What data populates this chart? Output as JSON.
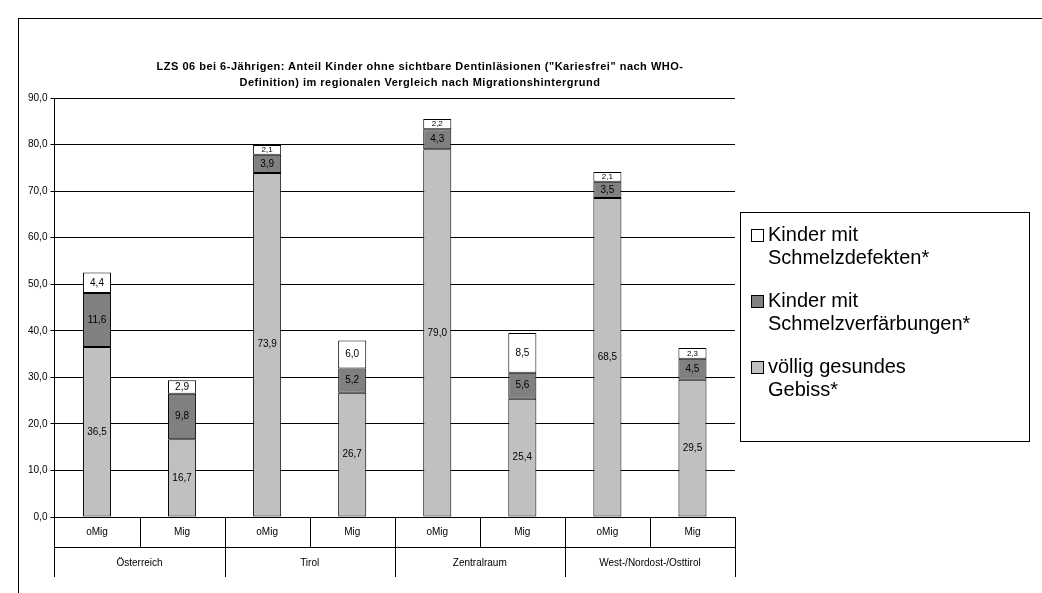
{
  "chart_data": {
    "type": "bar",
    "stacked": true,
    "title": "LZS 06 bei 6-Jährigen: Anteil Kinder ohne sichtbare Dentinläsionen (\"Kariesfrei\" nach WHO-Definition) im regionalen Vergleich nach Migrationshintergrund",
    "categories": [
      "oMig",
      "Mig",
      "oMig",
      "Mig",
      "oMig",
      "Mig",
      "oMig",
      "Mig"
    ],
    "annotations": [
      "Österreich",
      "Tirol",
      "Zentralraum",
      "West-/Nordost-/Osttirol"
    ],
    "series": [
      {
        "name": "völlig gesundes Gebiss*",
        "color": "#c0c0c0",
        "values": [
          36.5,
          16.7,
          73.9,
          26.7,
          79.0,
          25.4,
          68.5,
          29.5
        ],
        "value_labels": [
          "36,5",
          "16,7",
          "73,9",
          "26,7",
          "79,0",
          "25,4",
          "68,5",
          "29,5"
        ]
      },
      {
        "name": "Kinder mit Schmelzverfärbungen*",
        "color": "#808080",
        "values": [
          11.6,
          9.8,
          3.9,
          5.2,
          4.3,
          5.6,
          3.5,
          4.5
        ],
        "value_labels": [
          "11,6",
          "9,8",
          "3,9",
          "5,2",
          "4,3",
          "5,6",
          "3,5",
          "4,5"
        ]
      },
      {
        "name": "Kinder mit Schmelzdefekten*",
        "color": "#ffffff",
        "values": [
          4.4,
          2.9,
          2.1,
          6.0,
          2.2,
          8.5,
          2.1,
          2.3
        ],
        "value_labels": [
          "4,4",
          "2,9",
          "2,1",
          "6,0",
          "2,2",
          "8,5",
          "2,1",
          "2,3"
        ]
      }
    ],
    "ylim": [
      0,
      90
    ],
    "yticks": [
      {
        "value": 0,
        "label": "0,0"
      },
      {
        "value": 10,
        "label": "10,0"
      },
      {
        "value": 20,
        "label": "20,0"
      },
      {
        "value": 30,
        "label": "30,0"
      },
      {
        "value": 40,
        "label": "40,0"
      },
      {
        "value": 50,
        "label": "50,0"
      },
      {
        "value": 60,
        "label": "60,0"
      },
      {
        "value": 70,
        "label": "70,0"
      },
      {
        "value": 80,
        "label": "80,0"
      },
      {
        "value": 90,
        "label": "90,0"
      }
    ],
    "grid": "y",
    "legend": "right"
  }
}
